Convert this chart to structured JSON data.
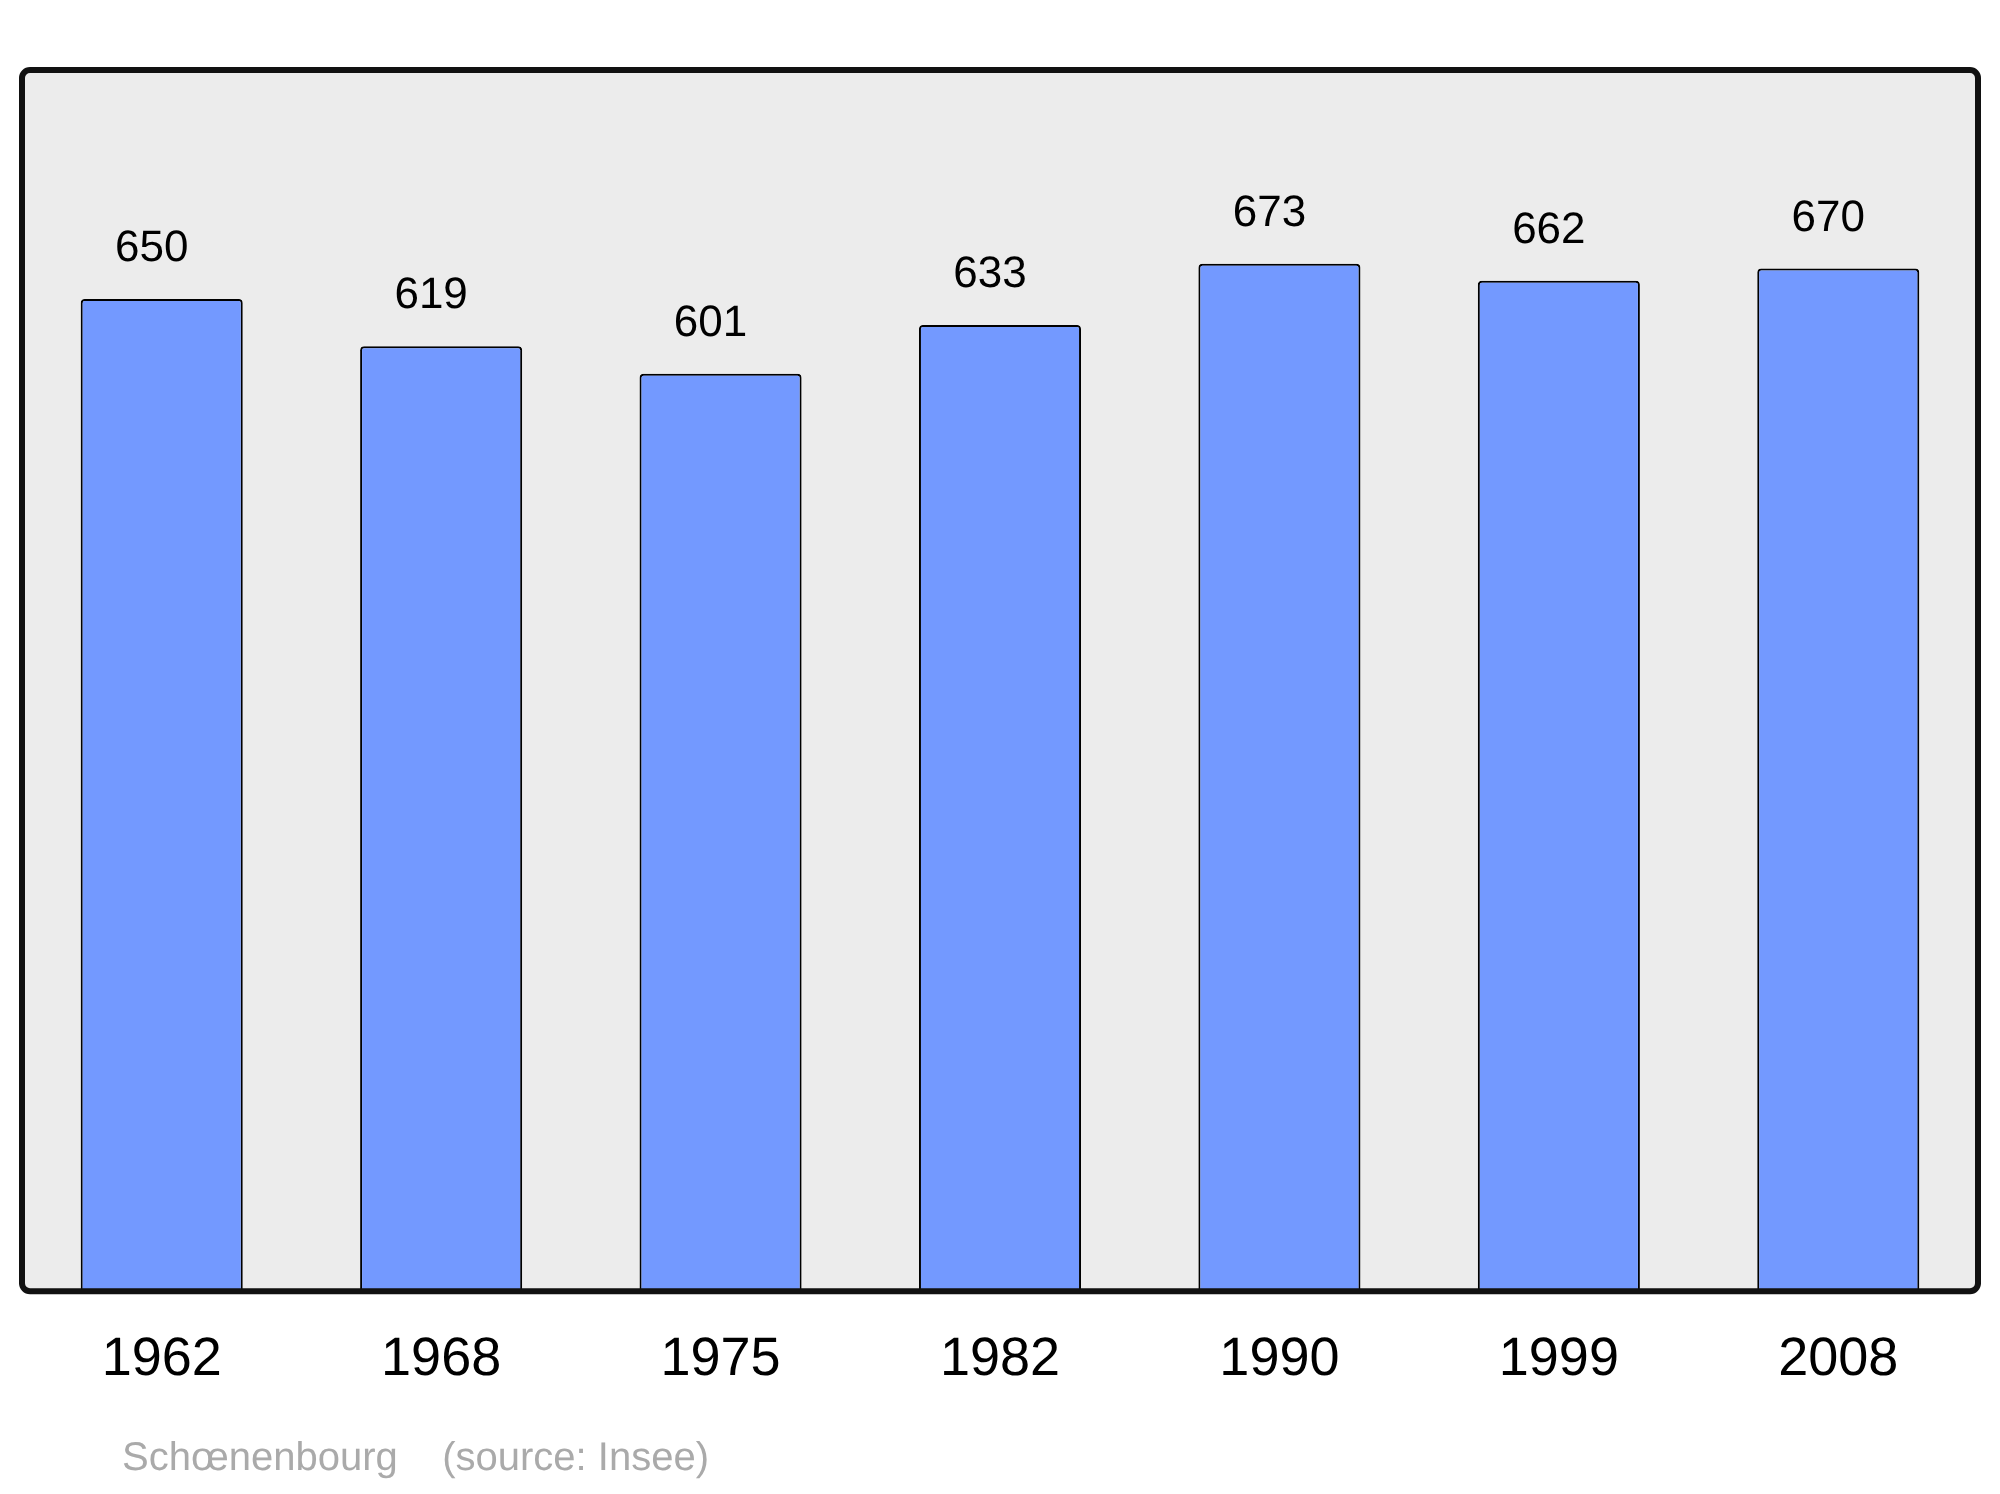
{
  "chart_data": {
    "type": "bar",
    "categories": [
      "1962",
      "1968",
      "1975",
      "1982",
      "1990",
      "1999",
      "2008"
    ],
    "values": [
      650,
      619,
      601,
      633,
      673,
      662,
      670
    ],
    "color": "#7399ff",
    "data_labels": true,
    "grid": false,
    "legend": false,
    "annotations": [
      "Schœnenbourg    (source: Insee)"
    ]
  }
}
